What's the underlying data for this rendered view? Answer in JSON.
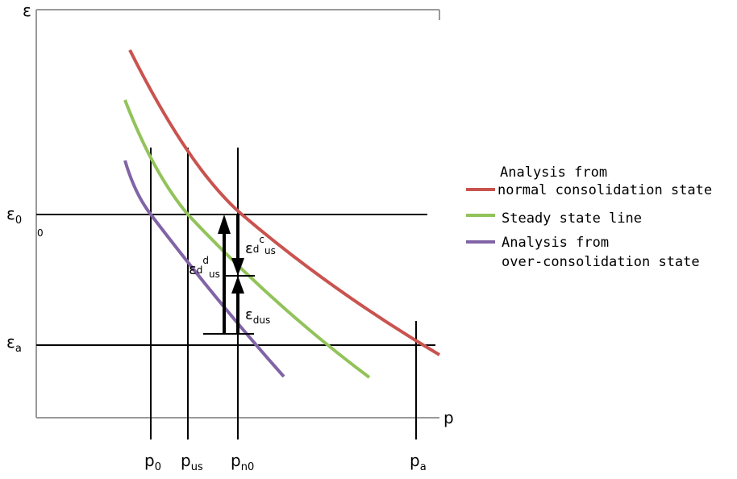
{
  "axes": {
    "y_label": "ε",
    "x_label": "p",
    "origin_label": "0"
  },
  "levels": {
    "e0": {
      "base": "ε",
      "sub": "0"
    },
    "ea": {
      "base": "ε",
      "sub": "a"
    }
  },
  "pressures": {
    "p0": {
      "base": "p",
      "sub": "0"
    },
    "pus": {
      "base": "p",
      "sub": "us"
    },
    "pn0": {
      "base": "p",
      "sub": "n0"
    },
    "pa": {
      "base": "p",
      "sub": "a"
    }
  },
  "arrows": {
    "ed_us_d": {
      "base": "ε",
      "sub": "d",
      "sup": "d",
      "tail": "us"
    },
    "ed_us_c": {
      "base": "ε",
      "sub": "d",
      "sup": "c",
      "tail": "us"
    },
    "e_dus": {
      "base": "ε",
      "sub": "dus"
    }
  },
  "legend": [
    {
      "lines": [
        "Analysis from",
        "normal consolidation state"
      ],
      "color": "#c9534f"
    },
    {
      "lines": [
        "Steady state line"
      ],
      "color": "#92c35a"
    },
    {
      "lines": [
        "Analysis from",
        "over-consolidation state"
      ],
      "color": "#8064a6"
    }
  ],
  "colors": {
    "axis": "#999999",
    "ncl": "#c9534f",
    "ssl": "#92c35a",
    "ocl": "#8064a6",
    "guide": "#000000"
  }
}
